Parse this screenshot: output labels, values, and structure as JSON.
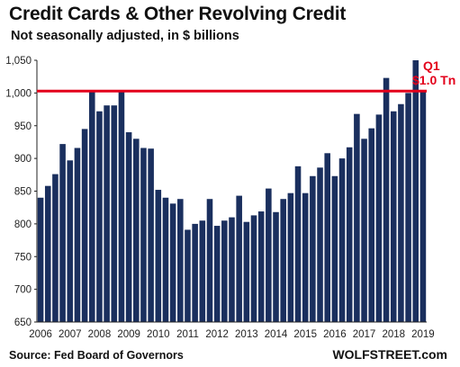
{
  "title": "Credit Cards & Other Revolving Credit",
  "subtitle": "Not seasonally adjusted, in $ billions",
  "source": "Source: Fed Board of Governors",
  "brand": "WOLFSTREET.com",
  "colors": {
    "bar": "#1a2f5e",
    "reference_line": "#e3001b",
    "annotation": "#e3001b"
  },
  "chart_data": {
    "type": "bar",
    "title": "Credit Cards & Other Revolving Credit",
    "subtitle": "Not seasonally adjusted, in $ billions",
    "xlabel": "",
    "ylabel": "",
    "ylim": [
      650,
      1050
    ],
    "yticks": [
      650,
      700,
      750,
      800,
      850,
      900,
      950,
      1000,
      1050
    ],
    "ytick_labels": [
      "650",
      "700",
      "750",
      "800",
      "850",
      "900",
      "950",
      "1,000",
      "1,050"
    ],
    "xtick_labels": [
      "2006",
      "2007",
      "2008",
      "2009",
      "2010",
      "2011",
      "2012",
      "2013",
      "2014",
      "2015",
      "2016",
      "2017",
      "2018",
      "2019"
    ],
    "grid": false,
    "reference_line": 1003,
    "annotation": {
      "lines": [
        "Q1",
        "$1.0 Tn"
      ]
    },
    "values": [
      840,
      858,
      876,
      922,
      897,
      916,
      945,
      1002,
      972,
      981,
      981,
      1002,
      940,
      930,
      916,
      915,
      852,
      840,
      831,
      838,
      791,
      800,
      805,
      838,
      797,
      805,
      810,
      843,
      803,
      813,
      819,
      854,
      818,
      838,
      847,
      888,
      847,
      873,
      886,
      908,
      873,
      900,
      917,
      968,
      930,
      946,
      967,
      1023,
      972,
      983,
      1000,
      1050,
      1003
    ]
  }
}
